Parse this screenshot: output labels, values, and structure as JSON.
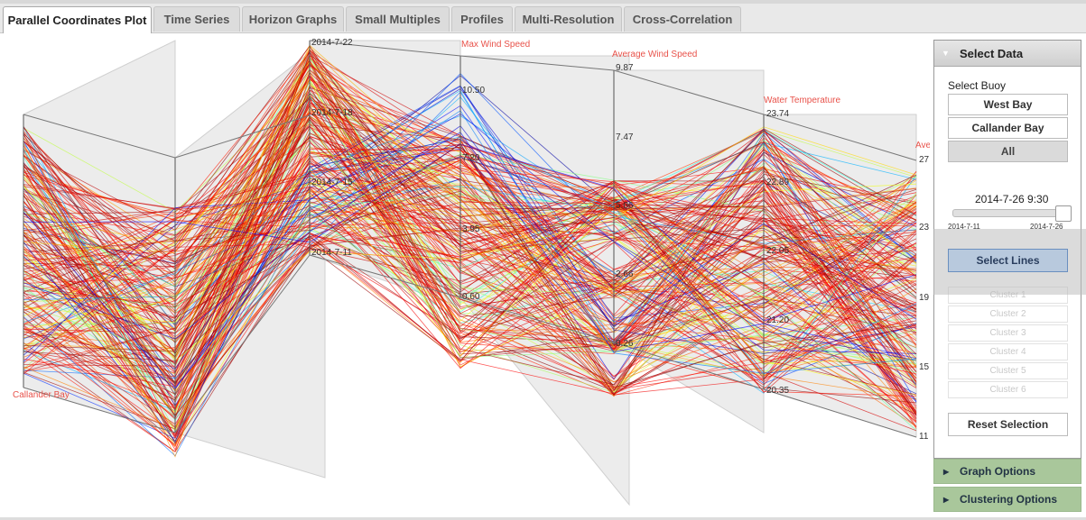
{
  "tabs": [
    {
      "label": "Parallel Coordinates Plot",
      "active": true
    },
    {
      "label": "Time Series"
    },
    {
      "label": "Horizon Graphs"
    },
    {
      "label": "Small Multiples"
    },
    {
      "label": "Profiles"
    },
    {
      "label": "Multi-Resolution"
    },
    {
      "label": "Cross-Correlation"
    }
  ],
  "plot": {
    "axis_labels": [
      "Callander Bay",
      "Max Wind Speed",
      "Average Wind Speed",
      "Water Temperature",
      "Ave"
    ],
    "date_ticks": [
      "2014-7-22",
      "2014-7-18",
      "2014-7-15",
      "2014-7-11"
    ],
    "max_wind_ticks": [
      "10.50",
      "7.20",
      "3.95",
      "0.60"
    ],
    "avg_wind_ticks": [
      "9.87",
      "7.47",
      "5.06",
      "2.66",
      "0.26"
    ],
    "water_temp_ticks": [
      "23.74",
      "22.89",
      "22.05",
      "21.20",
      "20.35"
    ],
    "last_axis_ticks": [
      "27",
      "23",
      "19",
      "15",
      "11"
    ]
  },
  "panel": {
    "header": "Select Data",
    "buoy_label": "Select Buoy",
    "buoys": [
      "West Bay",
      "Callander Bay",
      "All"
    ],
    "selected_buoy": "All",
    "time_value": "2014-7-26 9:30",
    "slider_min": "2014-7-11",
    "slider_max": "2014-7-26",
    "select_lines": "Select Lines",
    "clusters": [
      "Cluster 1",
      "Cluster 2",
      "Cluster 3",
      "Cluster 4",
      "Cluster 5",
      "Cluster 6"
    ],
    "reset": "Reset Selection"
  },
  "accordions": [
    "Graph Options",
    "Clustering Options"
  ],
  "colors": {
    "accent": "#e8524a",
    "accordion": "#a9c79b",
    "select": "#b8c9dd"
  }
}
